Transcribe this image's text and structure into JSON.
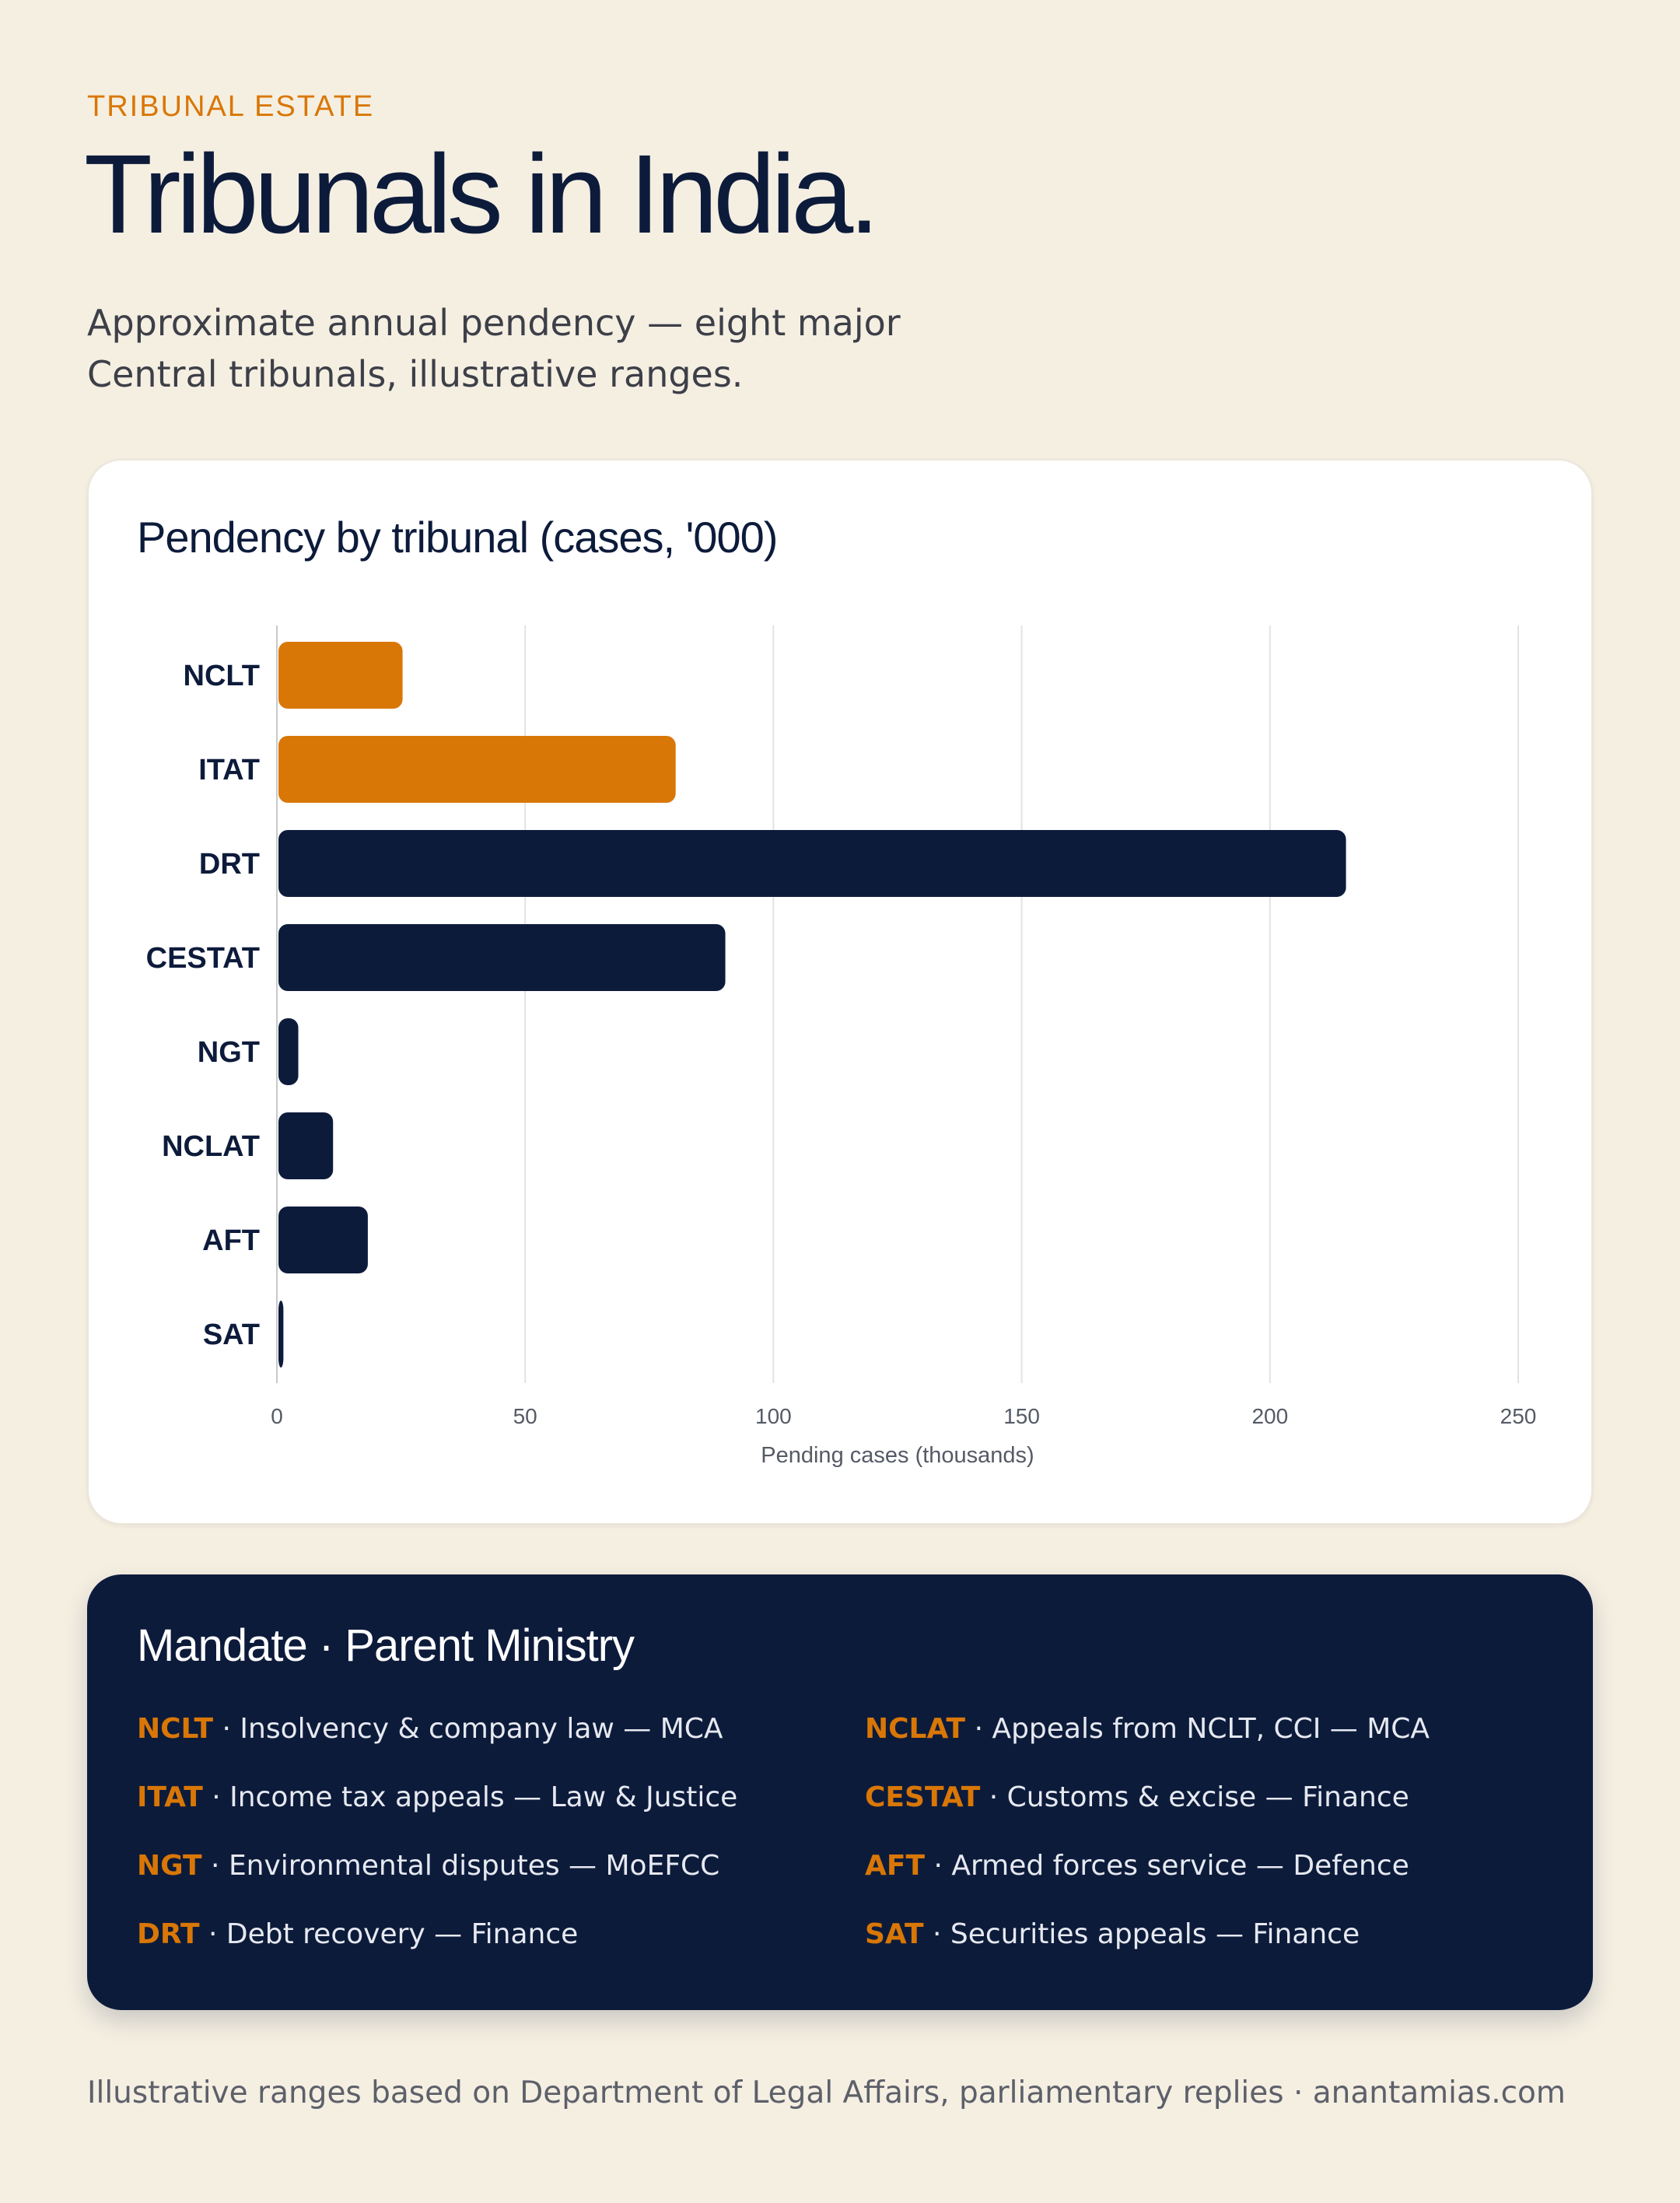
{
  "header": {
    "eyebrow": "TRIBUNAL ESTATE",
    "title": "Tribunals in India.",
    "subtitle": "Approximate annual pendency — eight major Central tribunals, illustrative ranges."
  },
  "chart_title": "Pendency by tribunal (cases, '000)",
  "chart_data": {
    "type": "bar",
    "orientation": "horizontal",
    "categories": [
      "NCLT",
      "ITAT",
      "DRT",
      "CESTAT",
      "NGT",
      "NCLAT",
      "AFT",
      "SAT"
    ],
    "values": [
      25,
      80,
      215,
      90,
      4,
      11,
      18,
      1
    ],
    "highlight": [
      true,
      true,
      false,
      false,
      false,
      false,
      false,
      false
    ],
    "xlabel": "Pending cases (thousands)",
    "xlim": [
      0,
      250
    ],
    "xticks": [
      0,
      50,
      100,
      150,
      200,
      250
    ],
    "grid": true,
    "colors": {
      "highlight": "#d97706",
      "default": "#0d1b3b",
      "grid": "#e3e3e3"
    }
  },
  "legend": {
    "title": "Mandate · Parent Ministry",
    "items": [
      {
        "abbr": "NCLT",
        "text": " · Insolvency & company law — MCA"
      },
      {
        "abbr": "ITAT",
        "text": " · Income tax appeals — Law & Justice"
      },
      {
        "abbr": "NGT",
        "text": " · Environmental disputes — MoEFCC"
      },
      {
        "abbr": "DRT",
        "text": " · Debt recovery — Finance"
      },
      {
        "abbr": "NCLAT",
        "text": " · Appeals from NCLT, CCI — MCA"
      },
      {
        "abbr": "CESTAT",
        "text": " · Customs & excise — Finance"
      },
      {
        "abbr": "AFT",
        "text": " · Armed forces service — Defence"
      },
      {
        "abbr": "SAT",
        "text": " · Securities appeals — Finance"
      }
    ]
  },
  "footer": "Illustrative ranges based on Department of Legal Affairs, parliamentary replies · anantamias.com",
  "colors": {
    "background": "#f5efe2",
    "navy": "#0d1b3b",
    "accent": "#d97706"
  }
}
